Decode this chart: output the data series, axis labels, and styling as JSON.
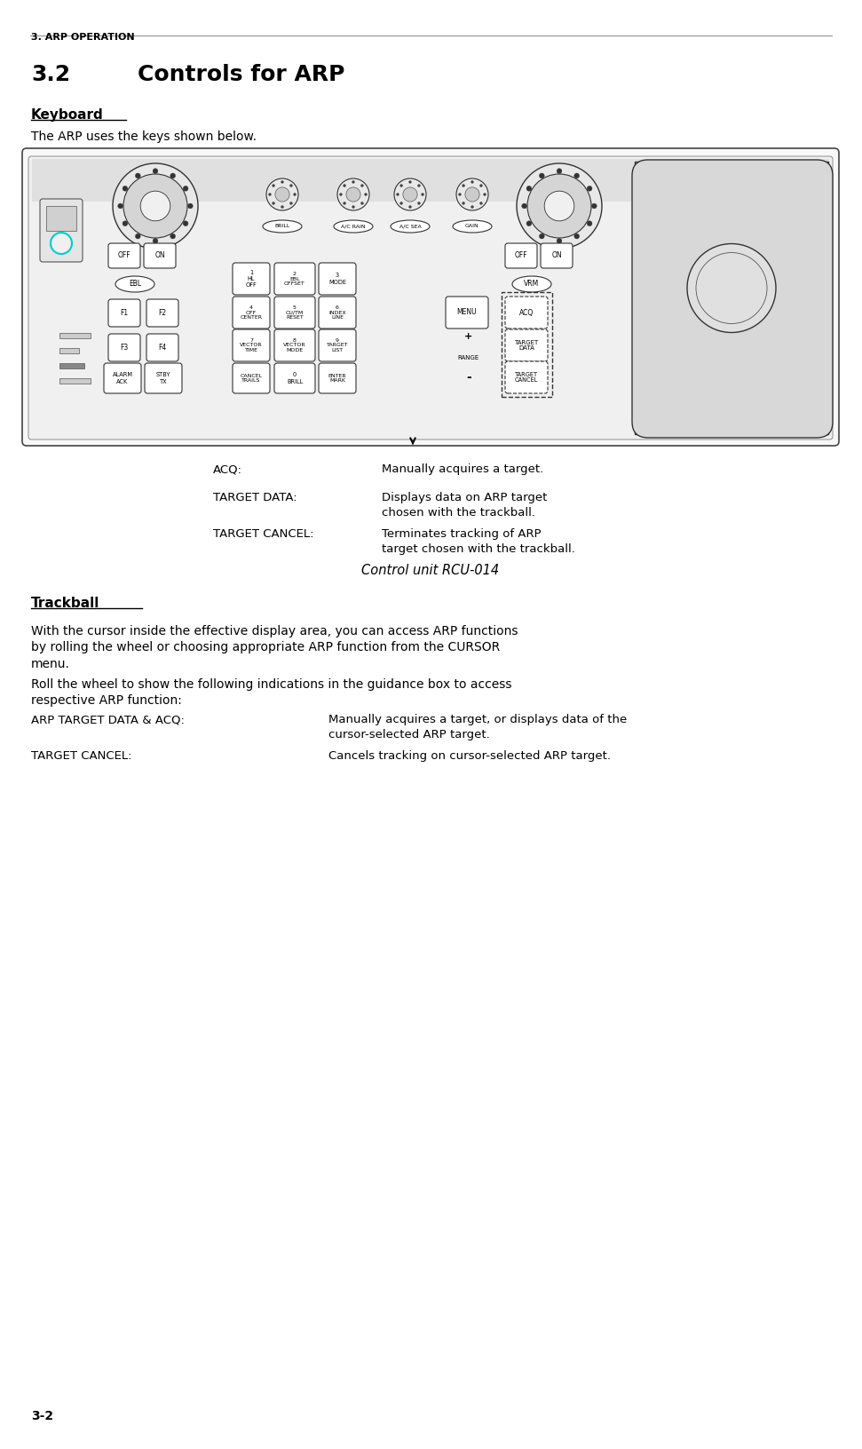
{
  "page_header": "3. ARP OPERATION",
  "section_num": "3.2",
  "section_title": "Controls for ARP",
  "subsection1": "Keyboard",
  "keyboard_intro": "The ARP uses the keys shown below.",
  "caption": "Control unit RCU-014",
  "subsection2": "Trackball",
  "trackball_para1": "With the cursor inside the effective display area, you can access ARP functions\nby rolling the wheel or choosing appropriate ARP function from the CURSOR\nmenu.",
  "trackball_para2": "Roll the wheel to show the following indications in the guidance box to access\nrespective ARP function:",
  "acq_label": "ACQ:",
  "acq_text": "Manually acquires a target.",
  "target_data_label": "TARGET DATA:",
  "target_data_text": "Displays data on ARP target\nchosen with the trackball.",
  "target_cancel_label": "TARGET CANCEL:",
  "target_cancel_text": "Terminates tracking of ARP\ntarget chosen with the trackball.",
  "arp_acq_label": "ARP TARGET DATA & ACQ:",
  "arp_acq_text": "Manually acquires a target, or displays data of the\ncursor-selected ARP target.",
  "cancel_label": "TARGET CANCEL:",
  "cancel_text": "Cancels tracking on cursor-selected ARP target.",
  "page_number": "3-2",
  "bg_color": "#ffffff",
  "text_color": "#000000",
  "header_color": "#000000",
  "panel_bg": "#f5f5f5",
  "panel_border": "#555555",
  "key_bg": "#ffffff",
  "key_border": "#333333",
  "cyan_color": "#00cccc"
}
